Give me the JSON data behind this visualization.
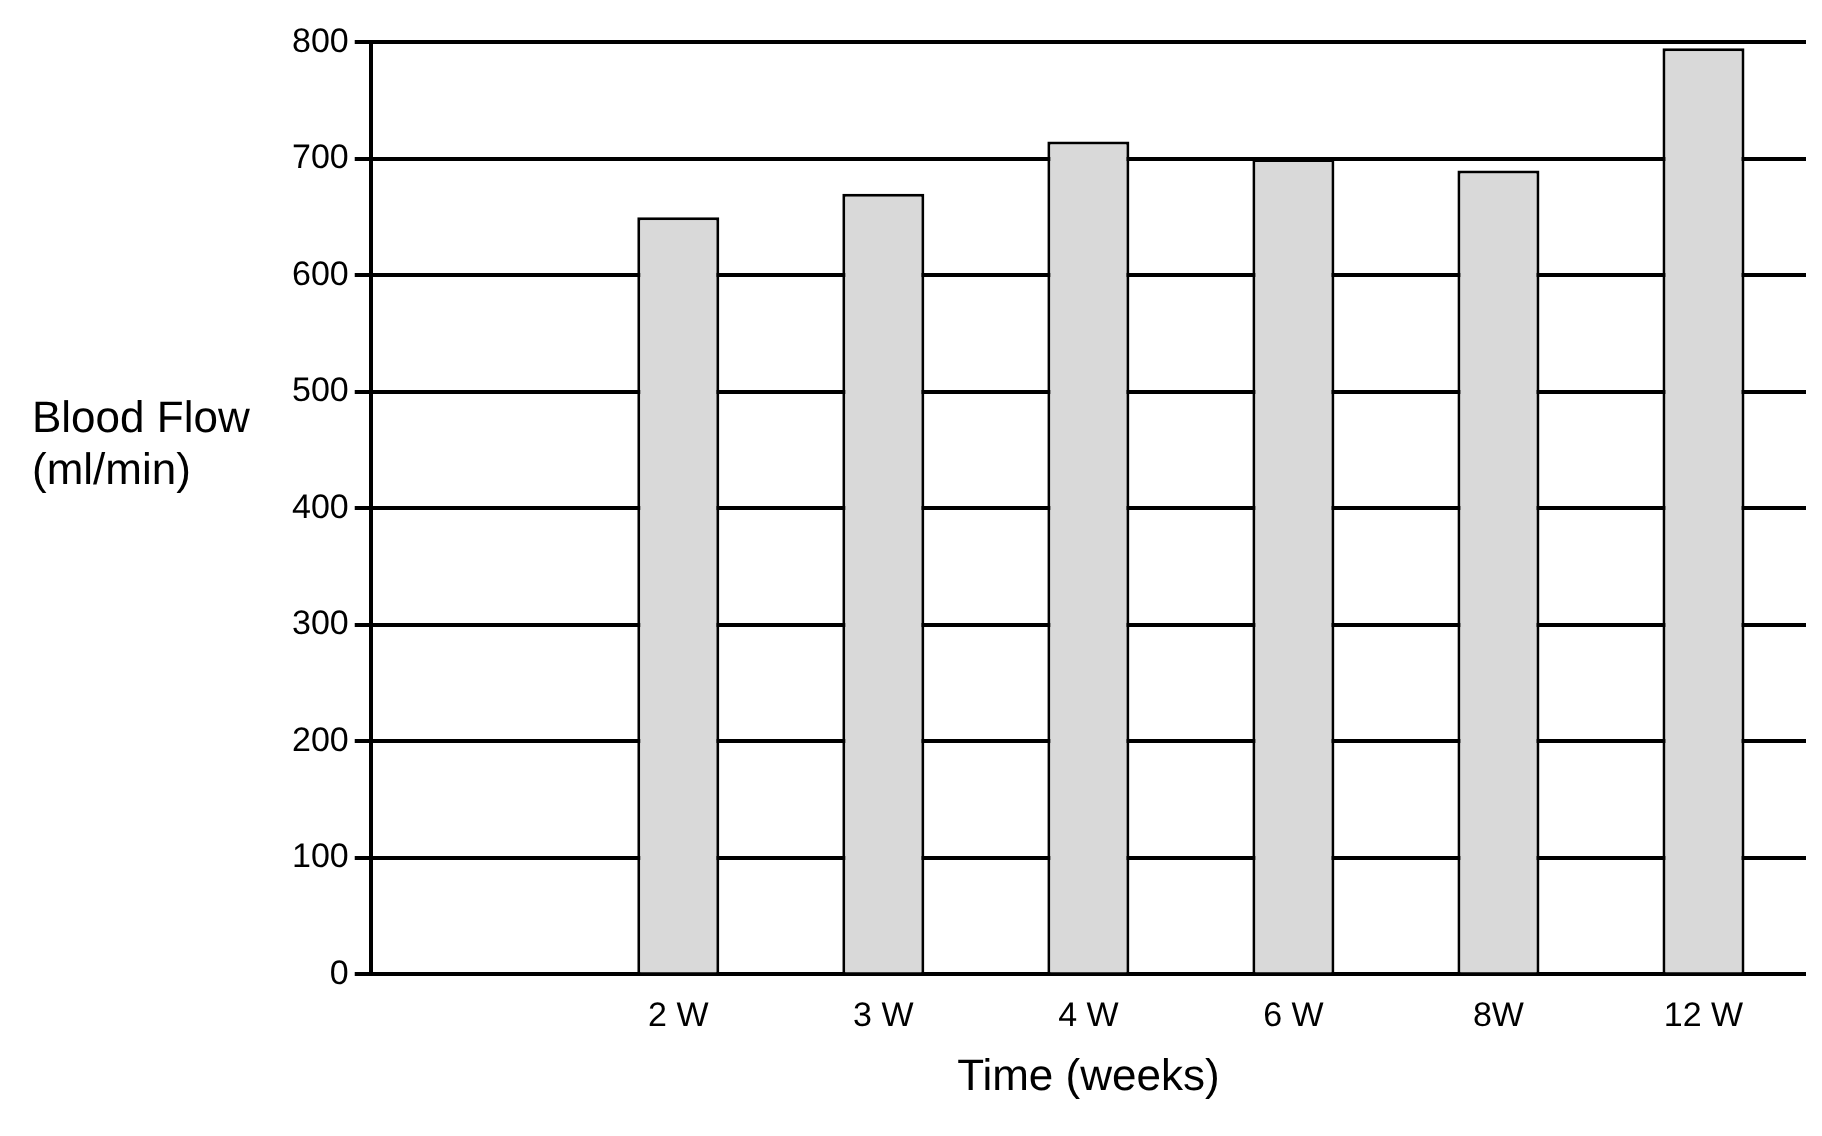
{
  "chart_data": {
    "type": "bar",
    "xlabel": "Time (weeks)",
    "ylabel": "Blood Flow (ml/min)",
    "categories": [
      null,
      "2 W",
      "3 W",
      "4 W",
      "6 W",
      "8W",
      "12 W"
    ],
    "values": [
      0,
      650,
      670,
      715,
      700,
      690,
      795
    ],
    "color": "#d9d9d9",
    "ylim": [
      0,
      800
    ],
    "yticks": [
      0,
      100,
      200,
      300,
      400,
      500,
      600,
      700,
      800
    ],
    "grid": "y"
  }
}
